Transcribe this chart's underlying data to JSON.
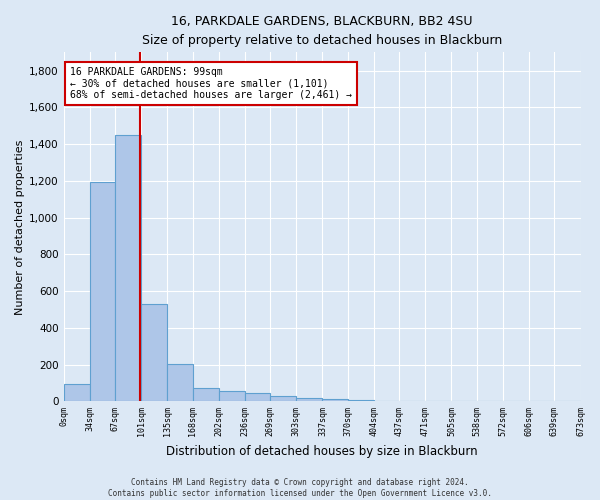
{
  "title": "16, PARKDALE GARDENS, BLACKBURN, BB2 4SU",
  "subtitle": "Size of property relative to detached houses in Blackburn",
  "xlabel": "Distribution of detached houses by size in Blackburn",
  "ylabel": "Number of detached properties",
  "bar_color": "#aec6e8",
  "bar_edge_color": "#5fa0d0",
  "background_color": "#dce8f5",
  "grid_color": "#ffffff",
  "property_line_x": 99,
  "annotation_text": "16 PARKDALE GARDENS: 99sqm\n← 30% of detached houses are smaller (1,101)\n68% of semi-detached houses are larger (2,461) →",
  "annotation_box_color": "#ffffff",
  "annotation_border_color": "#cc0000",
  "vline_color": "#cc0000",
  "footer_line1": "Contains HM Land Registry data © Crown copyright and database right 2024.",
  "footer_line2": "Contains public sector information licensed under the Open Government Licence v3.0.",
  "bin_edges": [
    0,
    34,
    67,
    101,
    135,
    168,
    202,
    236,
    269,
    303,
    337,
    370,
    404,
    437,
    471,
    505,
    538,
    572,
    606,
    639,
    673
  ],
  "bin_labels": [
    "0sqm",
    "34sqm",
    "67sqm",
    "101sqm",
    "135sqm",
    "168sqm",
    "202sqm",
    "236sqm",
    "269sqm",
    "303sqm",
    "337sqm",
    "370sqm",
    "404sqm",
    "437sqm",
    "471sqm",
    "505sqm",
    "538sqm",
    "572sqm",
    "606sqm",
    "639sqm",
    "673sqm"
  ],
  "bar_heights": [
    95,
    1195,
    1450,
    530,
    205,
    75,
    55,
    45,
    30,
    20,
    10,
    5,
    2,
    0,
    0,
    0,
    0,
    0,
    0,
    0
  ],
  "ylim": [
    0,
    1900
  ],
  "yticks": [
    0,
    200,
    400,
    600,
    800,
    1000,
    1200,
    1400,
    1600,
    1800
  ]
}
